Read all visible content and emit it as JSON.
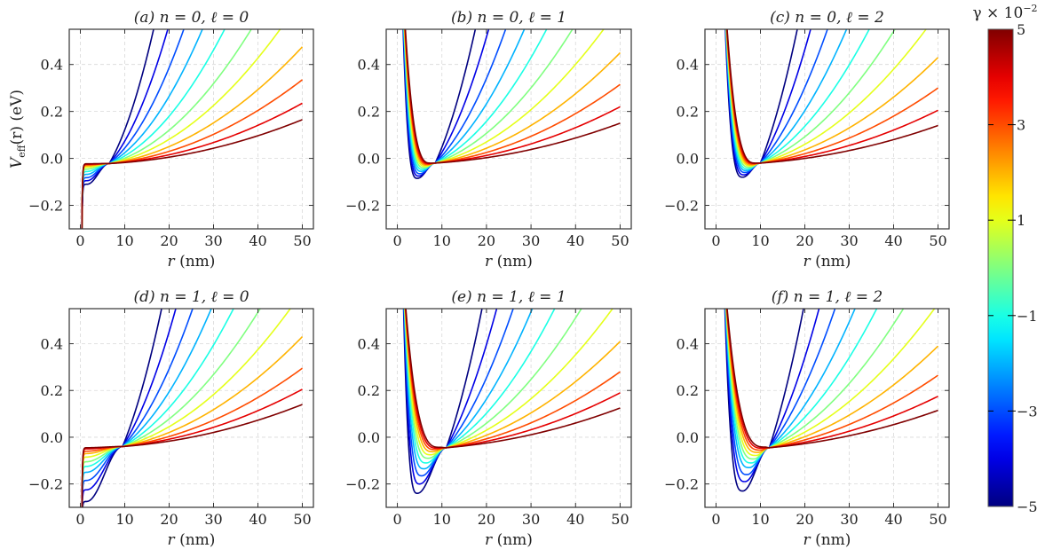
{
  "figure": {
    "colorbar": {
      "label_main": "γ × 10",
      "label_exp": "−2",
      "range": [
        -5,
        5
      ],
      "ticks": [
        -5,
        -3,
        -1,
        1,
        3,
        5
      ],
      "tick_labels": [
        "−5",
        "−3",
        "−1",
        "1",
        "3",
        "5"
      ],
      "colormap": "jet"
    }
  },
  "chart_data": [
    {
      "type": "line",
      "title": "(a) n = 0,  ℓ = 0",
      "n": 0,
      "l": 0,
      "xlabel_var": "r",
      "xlabel_unit": " (nm)",
      "ylabel_main": "V",
      "ylabel_sub": "eff",
      "ylabel_rest": "(r) (eV)",
      "xlim": [
        -2.5,
        52.5
      ],
      "ylim": [
        -0.3,
        0.55
      ],
      "xticks": [
        0,
        10,
        20,
        30,
        40,
        50
      ],
      "xtick_labels": [
        "0",
        "10",
        "20",
        "30",
        "40",
        "50"
      ],
      "yticks": [
        -0.2,
        0.0,
        0.2,
        0.4
      ],
      "ytick_labels": [
        "−0.2",
        "0.0",
        "0.2",
        "0.4"
      ],
      "grid": true,
      "crossing": {
        "r": 6.5,
        "V": -0.022
      },
      "series": {
        "gamma": [
          -5,
          -4,
          -3,
          -2,
          -1,
          0,
          1,
          2,
          3,
          4,
          5
        ],
        "r_min": [
          1.5,
          1.5,
          1.45,
          1.4,
          1.4,
          1.35,
          1.3,
          1.3,
          1.25,
          1.2,
          1.2
        ],
        "v_min": [
          -0.11,
          -0.095,
          -0.082,
          -0.068,
          -0.056,
          -0.046,
          -0.038,
          -0.032,
          -0.028,
          -0.025,
          -0.023
        ],
        "r_at_top": [
          16.5,
          19.7,
          23.3,
          27.5,
          32.5,
          38.5,
          45,
          null,
          null,
          null,
          null
        ],
        "v_at_50": [
          null,
          null,
          null,
          null,
          null,
          null,
          null,
          0.475,
          0.335,
          0.235,
          0.165
        ]
      }
    },
    {
      "type": "line",
      "title": "(b) n = 0,  ℓ = 1",
      "n": 0,
      "l": 1,
      "xlabel_var": "r",
      "xlabel_unit": " (nm)",
      "xlim": [
        -2.5,
        52.5
      ],
      "ylim": [
        -0.3,
        0.55
      ],
      "xticks": [
        0,
        10,
        20,
        30,
        40,
        50
      ],
      "xtick_labels": [
        "0",
        "10",
        "20",
        "30",
        "40",
        "50"
      ],
      "yticks": [
        -0.2,
        0.0,
        0.2,
        0.4
      ],
      "ytick_labels": [
        "−0.2",
        "0.0",
        "0.2",
        "0.4"
      ],
      "grid": true,
      "crossing": {
        "r": 8.5,
        "V": -0.02
      },
      "series": {
        "gamma": [
          -5,
          -4,
          -3,
          -2,
          -1,
          0,
          1,
          2,
          3,
          4,
          5
        ],
        "r_min": [
          4.5,
          4.8,
          5.1,
          5.4,
          5.7,
          6.0,
          6.3,
          6.6,
          6.9,
          7.2,
          7.5
        ],
        "v_min": [
          -0.085,
          -0.075,
          -0.065,
          -0.055,
          -0.047,
          -0.04,
          -0.034,
          -0.029,
          -0.025,
          -0.022,
          -0.02
        ],
        "r_wall_top": [
          1.3,
          1.35,
          1.4,
          1.45,
          1.5,
          1.55,
          1.6,
          1.65,
          1.7,
          1.75,
          1.8
        ],
        "r_at_top": [
          17.5,
          20.5,
          24.3,
          28.5,
          33.5,
          39.3,
          46.3,
          null,
          null,
          null,
          null
        ],
        "v_at_50": [
          null,
          null,
          null,
          null,
          null,
          null,
          null,
          0.45,
          0.315,
          0.22,
          0.15
        ]
      }
    },
    {
      "type": "line",
      "title": "(c) n = 0,  ℓ = 2",
      "n": 0,
      "l": 2,
      "xlabel_var": "r",
      "xlabel_unit": " (nm)",
      "xlim": [
        -2.5,
        52.5
      ],
      "ylim": [
        -0.3,
        0.55
      ],
      "xticks": [
        0,
        10,
        20,
        30,
        40,
        50
      ],
      "xtick_labels": [
        "0",
        "10",
        "20",
        "30",
        "40",
        "50"
      ],
      "yticks": [
        -0.2,
        0.0,
        0.2,
        0.4
      ],
      "ytick_labels": [
        "−0.2",
        "0.0",
        "0.2",
        "0.4"
      ],
      "grid": true,
      "crossing": {
        "r": 10,
        "V": -0.02
      },
      "series": {
        "gamma": [
          -5,
          -4,
          -3,
          -2,
          -1,
          0,
          1,
          2,
          3,
          4,
          5
        ],
        "r_min": [
          6.0,
          6.3,
          6.6,
          6.9,
          7.2,
          7.5,
          7.8,
          8.1,
          8.4,
          8.7,
          9.0
        ],
        "v_min": [
          -0.08,
          -0.07,
          -0.06,
          -0.052,
          -0.045,
          -0.038,
          -0.032,
          -0.028,
          -0.024,
          -0.021,
          -0.02
        ],
        "r_wall_top": [
          2.1,
          2.14,
          2.18,
          2.22,
          2.26,
          2.3,
          2.34,
          2.38,
          2.42,
          2.46,
          2.5
        ],
        "r_at_top": [
          18.3,
          21.3,
          25.1,
          29.4,
          34.5,
          40.3,
          47.3,
          null,
          null,
          null,
          null
        ],
        "v_at_50": [
          null,
          null,
          null,
          null,
          null,
          null,
          null,
          0.43,
          0.3,
          0.205,
          0.14
        ]
      }
    },
    {
      "type": "line",
      "title": "(d) n = 1,  ℓ = 0",
      "n": 1,
      "l": 0,
      "xlabel_var": "r",
      "xlabel_unit": " (nm)",
      "xlim": [
        -2.5,
        52.5
      ],
      "ylim": [
        -0.3,
        0.55
      ],
      "xticks": [
        0,
        10,
        20,
        30,
        40,
        50
      ],
      "xtick_labels": [
        "0",
        "10",
        "20",
        "30",
        "40",
        "50"
      ],
      "yticks": [
        -0.2,
        0.0,
        0.2,
        0.4
      ],
      "ytick_labels": [
        "−0.2",
        "0.0",
        "0.2",
        "0.4"
      ],
      "grid": true,
      "crossing": {
        "r": 9.5,
        "V": -0.04
      },
      "series": {
        "gamma": [
          -5,
          -4,
          -3,
          -2,
          -1,
          0,
          1,
          2,
          3,
          4,
          5
        ],
        "r_min": [
          1.4,
          1.4,
          1.35,
          1.35,
          1.3,
          1.3,
          1.25,
          1.25,
          1.2,
          1.2,
          1.2
        ],
        "v_min": [
          -0.275,
          -0.225,
          -0.185,
          -0.15,
          -0.125,
          -0.105,
          -0.085,
          -0.07,
          -0.06,
          -0.05,
          -0.045
        ],
        "r_at_top": [
          18.3,
          21.5,
          25.3,
          29.5,
          34.5,
          40.5,
          47.3,
          null,
          null,
          null,
          null
        ],
        "v_at_50": [
          null,
          null,
          null,
          null,
          null,
          null,
          null,
          0.43,
          0.295,
          0.205,
          0.14
        ]
      }
    },
    {
      "type": "line",
      "title": "(e) n = 1,  ℓ = 1",
      "n": 1,
      "l": 1,
      "xlabel_var": "r",
      "xlabel_unit": " (nm)",
      "xlim": [
        -2.5,
        52.5
      ],
      "ylim": [
        -0.3,
        0.55
      ],
      "xticks": [
        0,
        10,
        20,
        30,
        40,
        50
      ],
      "xtick_labels": [
        "0",
        "10",
        "20",
        "30",
        "40",
        "50"
      ],
      "yticks": [
        -0.2,
        0.0,
        0.2,
        0.4
      ],
      "ytick_labels": [
        "−0.2",
        "0.0",
        "0.2",
        "0.4"
      ],
      "grid": true,
      "crossing": {
        "r": 11,
        "V": -0.045
      },
      "series": {
        "gamma": [
          -5,
          -4,
          -3,
          -2,
          -1,
          0,
          1,
          2,
          3,
          4,
          5
        ],
        "r_min": [
          4.5,
          5.0,
          5.5,
          6.0,
          6.5,
          7.0,
          7.5,
          8.0,
          8.5,
          9.0,
          9.5
        ],
        "v_min": [
          -0.24,
          -0.2,
          -0.165,
          -0.135,
          -0.11,
          -0.09,
          -0.075,
          -0.062,
          -0.053,
          -0.047,
          -0.043
        ],
        "r_wall_top": [
          1.4,
          1.45,
          1.5,
          1.55,
          1.6,
          1.65,
          1.7,
          1.75,
          1.8,
          1.85,
          1.9
        ],
        "r_at_top": [
          19,
          22.3,
          26,
          30.3,
          35.3,
          41.3,
          48.3,
          null,
          null,
          null,
          null
        ],
        "v_at_50": [
          null,
          null,
          null,
          null,
          null,
          null,
          null,
          0.41,
          0.28,
          0.19,
          0.125
        ]
      }
    },
    {
      "type": "line",
      "title": "(f) n = 1,  ℓ = 2",
      "n": 1,
      "l": 2,
      "xlabel_var": "r",
      "xlabel_unit": " (nm)",
      "xlim": [
        -2.5,
        52.5
      ],
      "ylim": [
        -0.3,
        0.55
      ],
      "xticks": [
        0,
        10,
        20,
        30,
        40,
        50
      ],
      "xtick_labels": [
        "0",
        "10",
        "20",
        "30",
        "40",
        "50"
      ],
      "yticks": [
        -0.2,
        0.0,
        0.2,
        0.4
      ],
      "ytick_labels": [
        "−0.2",
        "0.0",
        "0.2",
        "0.4"
      ],
      "grid": true,
      "crossing": {
        "r": 12,
        "V": -0.045
      },
      "series": {
        "gamma": [
          -5,
          -4,
          -3,
          -2,
          -1,
          0,
          1,
          2,
          3,
          4,
          5
        ],
        "r_min": [
          6.0,
          6.5,
          7.0,
          7.5,
          8.0,
          8.5,
          9.0,
          9.5,
          10.0,
          10.5,
          11.0
        ],
        "v_min": [
          -0.23,
          -0.19,
          -0.16,
          -0.13,
          -0.11,
          -0.093,
          -0.078,
          -0.065,
          -0.055,
          -0.047,
          -0.042
        ],
        "r_wall_top": [
          2.0,
          2.05,
          2.1,
          2.15,
          2.2,
          2.25,
          2.3,
          2.35,
          2.4,
          2.45,
          2.5
        ],
        "r_at_top": [
          19.7,
          23.2,
          26.8,
          31.3,
          36.2,
          42.2,
          49.2,
          null,
          null,
          null,
          null
        ],
        "v_at_50": [
          null,
          null,
          null,
          null,
          null,
          null,
          null,
          0.39,
          0.265,
          0.175,
          0.115
        ]
      }
    }
  ]
}
